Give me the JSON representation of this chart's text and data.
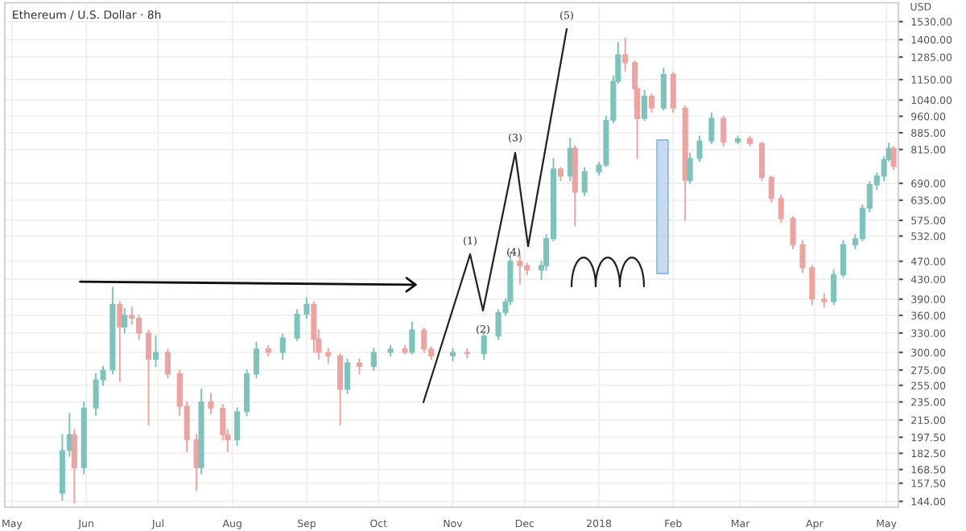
{
  "chart_data": {
    "type": "candlestick",
    "title": "Ethereum / U.S. Dollar · 8h",
    "x": [
      "2017-05-22",
      "2017-05-25",
      "2017-05-27",
      "2017-05-31",
      "2017-06-05",
      "2017-06-08",
      "2017-06-12",
      "2017-06-15",
      "2017-06-17",
      "2017-06-20",
      "2017-06-23",
      "2017-06-27",
      "2017-06-30",
      "2017-07-05",
      "2017-07-10",
      "2017-07-13",
      "2017-07-17",
      "2017-07-19",
      "2017-07-23",
      "2017-07-28",
      "2017-07-30",
      "2017-08-03",
      "2017-08-07",
      "2017-08-11",
      "2017-08-16",
      "2017-08-22",
      "2017-08-28",
      "2017-09-01",
      "2017-09-04",
      "2017-09-06",
      "2017-09-10",
      "2017-09-15",
      "2017-09-18",
      "2017-09-23",
      "2017-09-29",
      "2017-10-06",
      "2017-10-12",
      "2017-10-15",
      "2017-10-20",
      "2017-10-23",
      "2017-11-01",
      "2017-11-07",
      "2017-11-14",
      "2017-11-20",
      "2017-11-23",
      "2017-11-25",
      "2017-11-29",
      "2017-12-02",
      "2017-12-08",
      "2017-12-10",
      "2017-12-13",
      "2017-12-16",
      "2017-12-20",
      "2017-12-22",
      "2017-12-26",
      "2018-01-01",
      "2018-01-04",
      "2018-01-07",
      "2018-01-09",
      "2018-01-12",
      "2018-01-16",
      "2018-01-17",
      "2018-01-20",
      "2018-01-23",
      "2018-01-28",
      "2018-02-01",
      "2018-02-06",
      "2018-02-08",
      "2018-02-12",
      "2018-02-17",
      "2018-02-22",
      "2018-02-28",
      "2018-03-05",
      "2018-03-10",
      "2018-03-14",
      "2018-03-18",
      "2018-03-23",
      "2018-03-27",
      "2018-03-31",
      "2018-04-05",
      "2018-04-09",
      "2018-04-13",
      "2018-04-18",
      "2018-04-21",
      "2018-04-24",
      "2018-04-27",
      "2018-04-30",
      "2018-05-02",
      "2018-05-04"
    ],
    "ohlc": [
      [
        150,
        200,
        145,
        185
      ],
      [
        185,
        222,
        180,
        200
      ],
      [
        200,
        205,
        143,
        170
      ],
      [
        170,
        235,
        165,
        228
      ],
      [
        228,
        270,
        220,
        262
      ],
      [
        262,
        280,
        255,
        275
      ],
      [
        275,
        413,
        270,
        380
      ],
      [
        380,
        385,
        260,
        340
      ],
      [
        340,
        372,
        330,
        360
      ],
      [
        360,
        375,
        345,
        355
      ],
      [
        355,
        360,
        320,
        330
      ],
      [
        330,
        335,
        210,
        290
      ],
      [
        290,
        325,
        280,
        300
      ],
      [
        300,
        305,
        265,
        270
      ],
      [
        270,
        275,
        220,
        230
      ],
      [
        230,
        235,
        184,
        195
      ],
      [
        195,
        200,
        152,
        170
      ],
      [
        170,
        250,
        165,
        235
      ],
      [
        235,
        245,
        222,
        228
      ],
      [
        228,
        232,
        195,
        200
      ],
      [
        200,
        205,
        184,
        195
      ],
      [
        195,
        228,
        190,
        224
      ],
      [
        224,
        275,
        220,
        270
      ],
      [
        270,
        315,
        265,
        305
      ],
      [
        305,
        310,
        295,
        300
      ],
      [
        300,
        328,
        290,
        322
      ],
      [
        322,
        370,
        318,
        362
      ],
      [
        362,
        392,
        355,
        380
      ],
      [
        380,
        385,
        300,
        320
      ],
      [
        320,
        335,
        290,
        300
      ],
      [
        300,
        306,
        285,
        295
      ],
      [
        295,
        298,
        210,
        250
      ],
      [
        250,
        290,
        245,
        285
      ],
      [
        285,
        290,
        270,
        280
      ],
      [
        280,
        306,
        275,
        300
      ],
      [
        300,
        310,
        295,
        305
      ],
      [
        305,
        310,
        298,
        300
      ],
      [
        300,
        348,
        298,
        335
      ],
      [
        335,
        338,
        300,
        305
      ],
      [
        305,
        308,
        290,
        295
      ],
      [
        295,
        305,
        288,
        300
      ],
      [
        300,
        305,
        292,
        298
      ],
      [
        298,
        330,
        290,
        325
      ],
      [
        325,
        370,
        320,
        365
      ],
      [
        365,
        390,
        360,
        385
      ],
      [
        385,
        490,
        380,
        470
      ],
      [
        470,
        485,
        420,
        460
      ],
      [
        460,
        465,
        440,
        450
      ],
      [
        450,
        470,
        430,
        460
      ],
      [
        460,
        535,
        450,
        525
      ],
      [
        525,
        780,
        520,
        740
      ],
      [
        740,
        745,
        700,
        715
      ],
      [
        715,
        860,
        700,
        820
      ],
      [
        820,
        830,
        560,
        660
      ],
      [
        660,
        745,
        650,
        730
      ],
      [
        730,
        765,
        720,
        755
      ],
      [
        755,
        960,
        750,
        940
      ],
      [
        940,
        1170,
        930,
        1140
      ],
      [
        1140,
        1380,
        1130,
        1300
      ],
      [
        1300,
        1410,
        1200,
        1250
      ],
      [
        1250,
        1260,
        1000,
        1100
      ],
      [
        1100,
        1110,
        780,
        950
      ],
      [
        950,
        1090,
        940,
        1060
      ],
      [
        1060,
        1070,
        980,
        1000
      ],
      [
        1000,
        1215,
        990,
        1180
      ],
      [
        1180,
        1190,
        980,
        1000
      ],
      [
        1000,
        1010,
        575,
        700
      ],
      [
        700,
        800,
        690,
        780
      ],
      [
        780,
        870,
        770,
        850
      ],
      [
        850,
        975,
        840,
        950
      ],
      [
        950,
        960,
        830,
        845
      ],
      [
        845,
        870,
        840,
        860
      ],
      [
        860,
        870,
        830,
        840
      ],
      [
        840,
        845,
        700,
        710
      ],
      [
        710,
        715,
        630,
        640
      ],
      [
        640,
        650,
        570,
        580
      ],
      [
        580,
        585,
        500,
        510
      ],
      [
        510,
        520,
        445,
        455
      ],
      [
        455,
        460,
        380,
        390
      ],
      [
        390,
        400,
        375,
        385
      ],
      [
        385,
        450,
        380,
        440
      ],
      [
        440,
        520,
        435,
        510
      ],
      [
        510,
        535,
        500,
        525
      ],
      [
        525,
        620,
        520,
        610
      ],
      [
        610,
        695,
        600,
        685
      ],
      [
        685,
        725,
        670,
        715
      ],
      [
        715,
        785,
        700,
        775
      ],
      [
        775,
        840,
        770,
        820
      ],
      [
        820,
        825,
        740,
        750
      ]
    ],
    "colors": [
      "#7cc4bb",
      "#7cc4bb",
      "#eea3a1",
      "#7cc4bb",
      "#7cc4bb",
      "#7cc4bb",
      "#7cc4bb",
      "#eea3a1",
      "#7cc4bb",
      "#eea3a1",
      "#eea3a1",
      "#eea3a1",
      "#7cc4bb",
      "#eea3a1",
      "#eea3a1",
      "#eea3a1",
      "#eea3a1",
      "#7cc4bb",
      "#eea3a1",
      "#eea3a1",
      "#eea3a1",
      "#7cc4bb",
      "#7cc4bb",
      "#7cc4bb",
      "#eea3a1",
      "#7cc4bb",
      "#7cc4bb",
      "#7cc4bb",
      "#eea3a1",
      "#eea3a1",
      "#eea3a1",
      "#eea3a1",
      "#7cc4bb",
      "#eea3a1",
      "#7cc4bb",
      "#7cc4bb",
      "#eea3a1",
      "#7cc4bb",
      "#eea3a1",
      "#eea3a1",
      "#7cc4bb",
      "#eea3a1",
      "#7cc4bb",
      "#7cc4bb",
      "#7cc4bb",
      "#7cc4bb",
      "#eea3a1",
      "#eea3a1",
      "#7cc4bb",
      "#7cc4bb",
      "#7cc4bb",
      "#eea3a1",
      "#7cc4bb",
      "#eea3a1",
      "#7cc4bb",
      "#7cc4bb",
      "#7cc4bb",
      "#7cc4bb",
      "#7cc4bb",
      "#eea3a1",
      "#eea3a1",
      "#eea3a1",
      "#7cc4bb",
      "#eea3a1",
      "#7cc4bb",
      "#eea3a1",
      "#eea3a1",
      "#7cc4bb",
      "#7cc4bb",
      "#7cc4bb",
      "#eea3a1",
      "#7cc4bb",
      "#eea3a1",
      "#eea3a1",
      "#eea3a1",
      "#eea3a1",
      "#eea3a1",
      "#eea3a1",
      "#eea3a1",
      "#eea3a1",
      "#7cc4bb",
      "#7cc4bb",
      "#7cc4bb",
      "#7cc4bb",
      "#7cc4bb",
      "#7cc4bb",
      "#7cc4bb",
      "#7cc4bb",
      "#eea3a1"
    ],
    "log": true,
    "xlim": [
      "2017-04-28",
      "2018-05-06"
    ],
    "xticks": [
      {
        "value": "2017-05-01",
        "label": "May"
      },
      {
        "value": "2017-06-01",
        "label": "Jun"
      },
      {
        "value": "2017-07-01",
        "label": "Jul"
      },
      {
        "value": "2017-08-01",
        "label": "Aug"
      },
      {
        "value": "2017-09-01",
        "label": "Sep"
      },
      {
        "value": "2017-10-01",
        "label": "Oct"
      },
      {
        "value": "2017-11-01",
        "label": "Nov"
      },
      {
        "value": "2017-12-01",
        "label": "Dec"
      },
      {
        "value": "2018-01-01",
        "label": "2018"
      },
      {
        "value": "2018-02-01",
        "label": "Feb"
      },
      {
        "value": "2018-03-01",
        "label": "Mar"
      },
      {
        "value": "2018-04-01",
        "label": "Apr"
      },
      {
        "value": "2018-05-01",
        "label": "May"
      }
    ],
    "ylim": [
      140,
      1680
    ],
    "yticks": [
      {
        "value": 144,
        "label": "144.00"
      },
      {
        "value": 157.5,
        "label": "157.50"
      },
      {
        "value": 168.5,
        "label": "168.50"
      },
      {
        "value": 182.5,
        "label": "182.50"
      },
      {
        "value": 197.5,
        "label": "197.50"
      },
      {
        "value": 215,
        "label": "215.00"
      },
      {
        "value": 235,
        "label": "235.00"
      },
      {
        "value": 255,
        "label": "255.00"
      },
      {
        "value": 275,
        "label": "275.00"
      },
      {
        "value": 300,
        "label": "300.00"
      },
      {
        "value": 330,
        "label": "330.00"
      },
      {
        "value": 360,
        "label": "360.00"
      },
      {
        "value": 390,
        "label": "390.00"
      },
      {
        "value": 430,
        "label": "430.00"
      },
      {
        "value": 470,
        "label": "470.00"
      },
      {
        "value": 532,
        "label": "532.00"
      },
      {
        "value": 575,
        "label": "575.00"
      },
      {
        "value": 635,
        "label": "635.00"
      },
      {
        "value": 690,
        "label": "690.00"
      },
      {
        "value": 815,
        "label": "815.00"
      },
      {
        "value": 885,
        "label": "885.00"
      },
      {
        "value": 960,
        "label": "960.00"
      },
      {
        "value": 1040,
        "label": "1040.00"
      },
      {
        "value": 1150,
        "label": "1150.00"
      },
      {
        "value": 1285,
        "label": "1285.00"
      },
      {
        "value": 1400,
        "label": "1400.00"
      },
      {
        "value": 1530,
        "label": "1530.00"
      }
    ],
    "ylabel": "USD",
    "annotations": [
      "(1)",
      "(2)",
      "(3)",
      "(4)",
      "(5)"
    ],
    "grid": true
  }
}
